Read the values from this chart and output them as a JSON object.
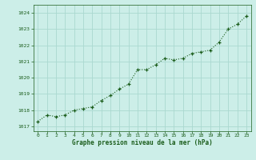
{
  "x": [
    0,
    1,
    2,
    3,
    4,
    5,
    6,
    7,
    8,
    9,
    10,
    11,
    12,
    13,
    14,
    15,
    16,
    17,
    18,
    19,
    20,
    21,
    22,
    23
  ],
  "y": [
    1017.3,
    1017.7,
    1017.6,
    1017.7,
    1018.0,
    1018.1,
    1018.2,
    1018.6,
    1018.9,
    1019.3,
    1019.6,
    1020.5,
    1020.5,
    1020.8,
    1021.2,
    1021.1,
    1021.2,
    1021.5,
    1021.6,
    1021.7,
    1022.2,
    1023.0,
    1023.3,
    1023.8
  ],
  "line_color": "#1a5c1a",
  "marker_color": "#1a5c1a",
  "bg_color": "#cceee8",
  "grid_color": "#aad8d0",
  "xlabel": "Graphe pression niveau de la mer (hPa)",
  "xlabel_color": "#1a5c1a",
  "tick_color": "#1a5c1a",
  "ylim_min": 1016.7,
  "ylim_max": 1024.5,
  "xlim_min": -0.5,
  "xlim_max": 23.5,
  "yticks": [
    1017,
    1018,
    1019,
    1020,
    1021,
    1022,
    1023,
    1024
  ],
  "xticks": [
    0,
    1,
    2,
    3,
    4,
    5,
    6,
    7,
    8,
    9,
    10,
    11,
    12,
    13,
    14,
    15,
    16,
    17,
    18,
    19,
    20,
    21,
    22,
    23
  ],
  "marker_size": 3.0,
  "line_width": 0.8
}
